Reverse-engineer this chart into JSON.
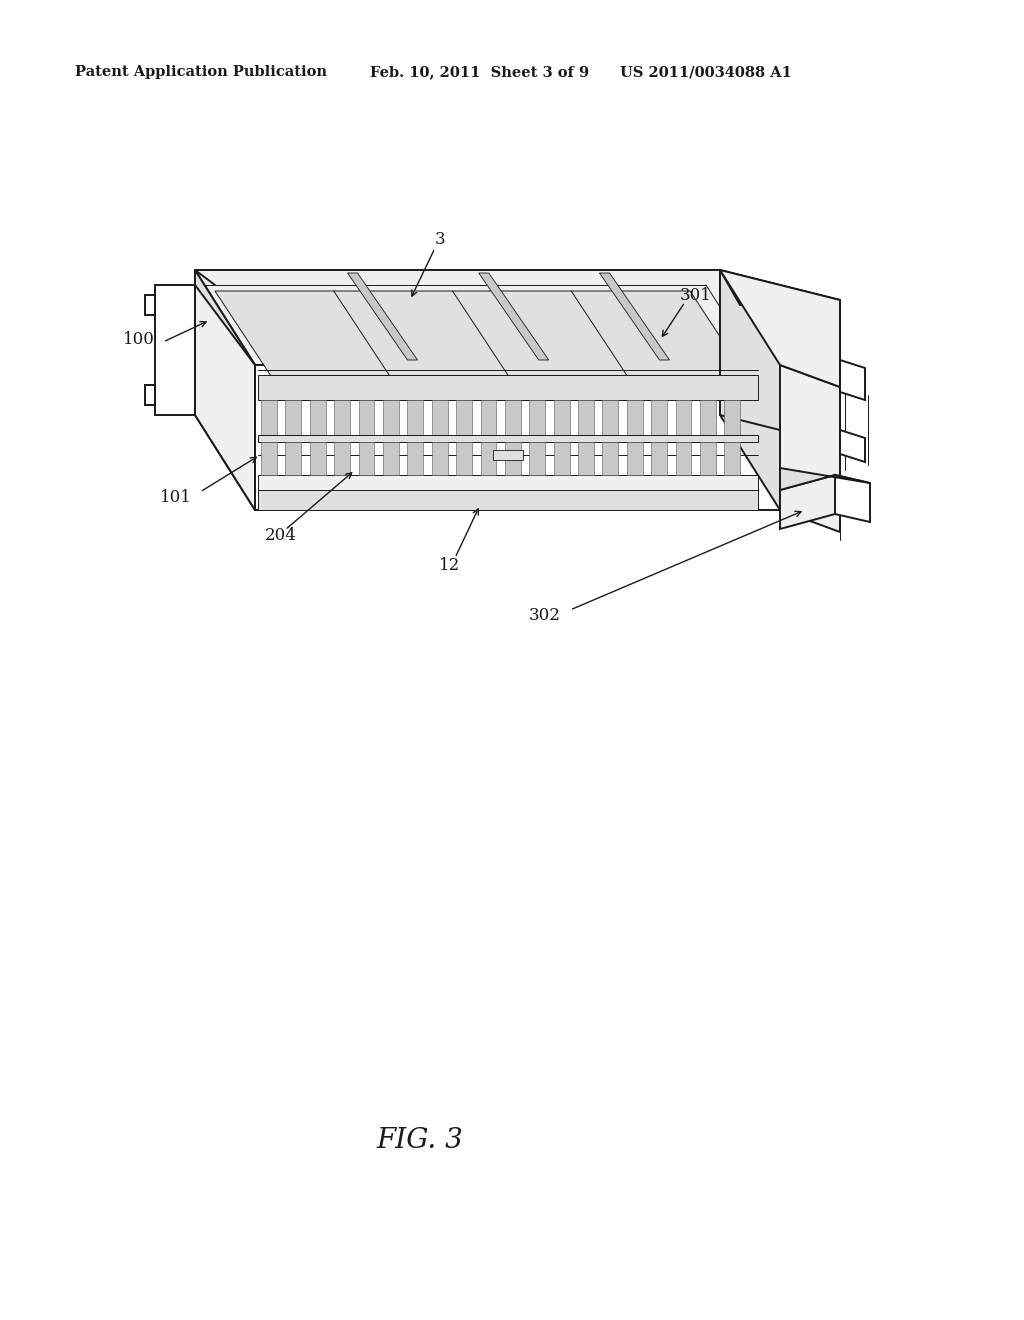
{
  "background_color": "#ffffff",
  "header_left": "Patent Application Publication",
  "header_mid": "Feb. 10, 2011  Sheet 3 of 9",
  "header_right": "US 2011/0034088 A1",
  "header_fontsize": 10.5,
  "figure_label": "FIG. 3",
  "figure_label_fontsize": 20,
  "line_color": "#1a1a1a",
  "annotation_fontsize": 12,
  "lw_main": 1.4,
  "lw_thin": 0.7,
  "lw_thick": 2.0,
  "face_white": "#ffffff",
  "face_light": "#f0f0f0",
  "face_mid": "#e0e0e0",
  "face_dark": "#c8c8c8"
}
